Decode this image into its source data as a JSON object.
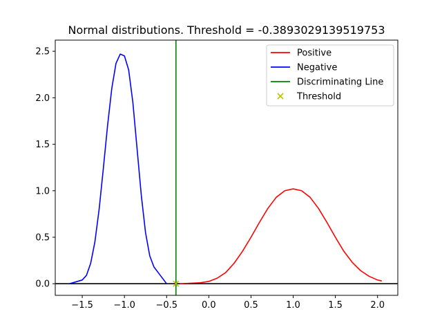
{
  "chart_data": {
    "type": "line",
    "title": "Normal distributions. Threshold = -0.3893029139519753",
    "xlabel": "",
    "ylabel": "",
    "xlim": [
      -1.82,
      2.24
    ],
    "ylim": [
      -0.125,
      2.62
    ],
    "x_ticks": [
      -1.5,
      -1.0,
      -0.5,
      0.0,
      0.5,
      1.0,
      1.5,
      2.0
    ],
    "x_tick_labels": [
      "−1.5",
      "−1.0",
      "−0.5",
      "0.0",
      "0.5",
      "1.0",
      "1.5",
      "2.0"
    ],
    "y_ticks": [
      0.0,
      0.5,
      1.0,
      1.5,
      2.0,
      2.5
    ],
    "y_tick_labels": [
      "0.0",
      "0.5",
      "1.0",
      "1.5",
      "2.0",
      "2.5"
    ],
    "grid": false,
    "legend_position": "top-right",
    "series": [
      {
        "name": "Positive",
        "color": "#ff0000",
        "style": "line",
        "points": [
          [
            -0.34,
            0.0
          ],
          [
            -0.1,
            0.01
          ],
          [
            0.0,
            0.025
          ],
          [
            0.1,
            0.06
          ],
          [
            0.2,
            0.12
          ],
          [
            0.3,
            0.22
          ],
          [
            0.4,
            0.35
          ],
          [
            0.5,
            0.5
          ],
          [
            0.6,
            0.66
          ],
          [
            0.7,
            0.81
          ],
          [
            0.8,
            0.93
          ],
          [
            0.9,
            1.0
          ],
          [
            1.0,
            1.02
          ],
          [
            1.1,
            1.0
          ],
          [
            1.2,
            0.93
          ],
          [
            1.3,
            0.81
          ],
          [
            1.4,
            0.66
          ],
          [
            1.5,
            0.5
          ],
          [
            1.6,
            0.35
          ],
          [
            1.7,
            0.23
          ],
          [
            1.8,
            0.14
          ],
          [
            1.9,
            0.08
          ],
          [
            2.0,
            0.04
          ],
          [
            2.05,
            0.03
          ]
        ]
      },
      {
        "name": "Negative",
        "color": "#0000ff",
        "style": "line",
        "points": [
          [
            -1.65,
            0.0
          ],
          [
            -1.5,
            0.04
          ],
          [
            -1.45,
            0.09
          ],
          [
            -1.4,
            0.22
          ],
          [
            -1.35,
            0.45
          ],
          [
            -1.3,
            0.8
          ],
          [
            -1.25,
            1.24
          ],
          [
            -1.2,
            1.7
          ],
          [
            -1.15,
            2.1
          ],
          [
            -1.1,
            2.37
          ],
          [
            -1.05,
            2.47
          ],
          [
            -1.0,
            2.45
          ],
          [
            -0.95,
            2.3
          ],
          [
            -0.9,
            1.95
          ],
          [
            -0.85,
            1.45
          ],
          [
            -0.8,
            0.95
          ],
          [
            -0.75,
            0.55
          ],
          [
            -0.7,
            0.3
          ],
          [
            -0.65,
            0.18
          ],
          [
            -0.6,
            0.12
          ],
          [
            -0.5,
            0.0
          ]
        ]
      },
      {
        "name": "Discriminating Line",
        "color": "#008000",
        "style": "vline",
        "x": -0.3893029139519753
      },
      {
        "name": "Threshold",
        "color": "#bfbf00",
        "style": "marker-x",
        "points": [
          [
            -0.3893029139519753,
            0.0
          ]
        ]
      }
    ],
    "baseline": {
      "y": 0.0,
      "color": "#000000"
    }
  }
}
